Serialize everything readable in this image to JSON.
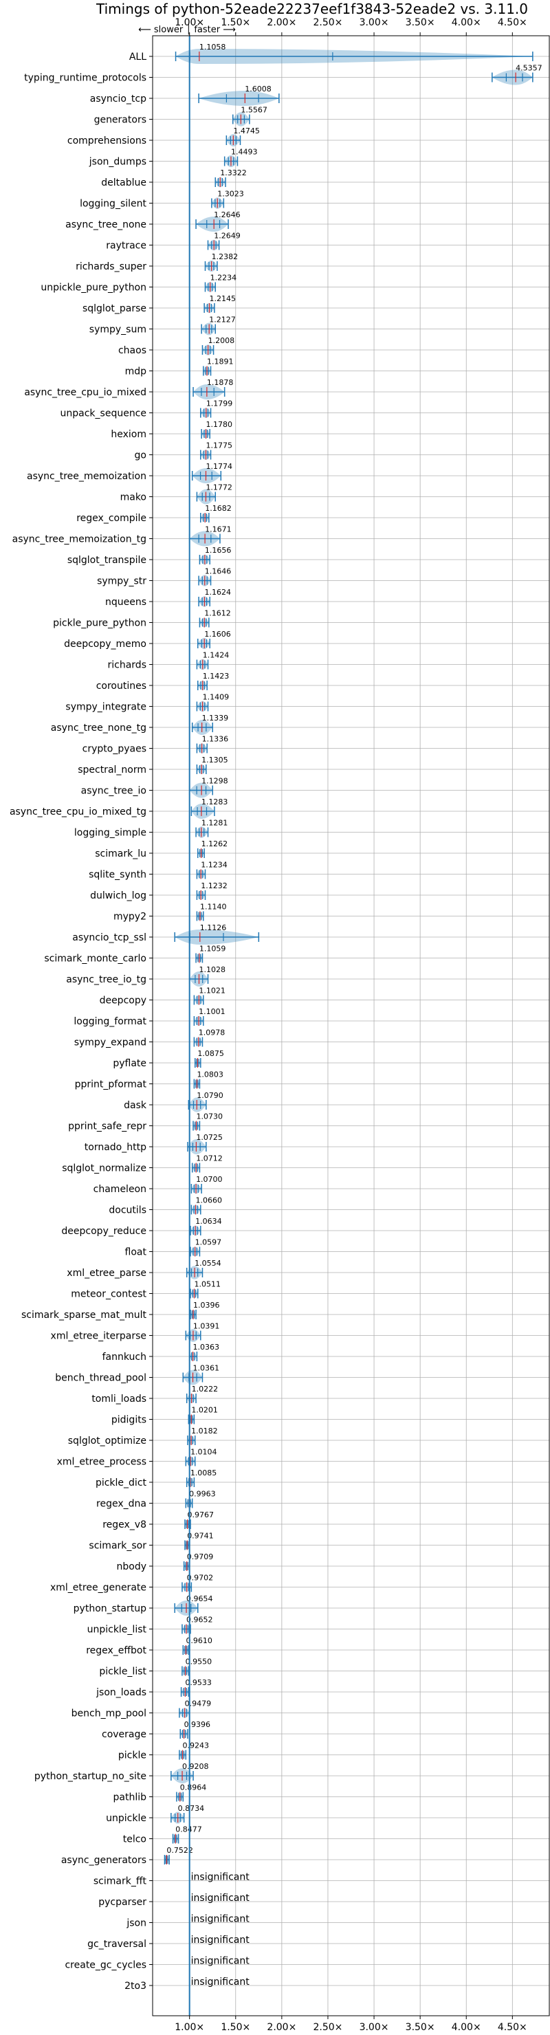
{
  "chart_data": {
    "type": "violin",
    "title": "Timings of python-52eade22237eef1f3843-52eade2 vs. 3.11.0",
    "annotation": "⟵ slower │ faster ⟶",
    "xlim": [
      0.6,
      4.9
    ],
    "x_ticks": [
      1.0,
      1.5,
      2.0,
      2.5,
      3.0,
      3.5,
      4.0,
      4.5
    ],
    "x_tick_labels": [
      "1.00×",
      "1.50×",
      "2.00×",
      "2.50×",
      "3.00×",
      "3.50×",
      "4.00×",
      "4.50×"
    ],
    "grid": true,
    "reference_line": 1.0,
    "colors": {
      "violin": "#1f77b4",
      "line": "#1f77b4",
      "median": "#d62728",
      "grid": "#b0b0b0"
    },
    "benchmarks": [
      {
        "name": "ALL",
        "value": 1.1058,
        "min": 0.85,
        "max": 4.72
      },
      {
        "name": "typing_runtime_protocols",
        "value": 4.5357,
        "min": 4.28,
        "max": 4.72
      },
      {
        "name": "asyncio_tcp",
        "value": 1.6008,
        "min": 1.1,
        "max": 1.97
      },
      {
        "name": "generators",
        "value": 1.5567,
        "min": 1.47,
        "max": 1.65
      },
      {
        "name": "comprehensions",
        "value": 1.4745,
        "min": 1.4,
        "max": 1.55
      },
      {
        "name": "json_dumps",
        "value": 1.4493,
        "min": 1.38,
        "max": 1.52
      },
      {
        "name": "deltablue",
        "value": 1.3322,
        "min": 1.28,
        "max": 1.39
      },
      {
        "name": "logging_silent",
        "value": 1.3023,
        "min": 1.24,
        "max": 1.37
      },
      {
        "name": "async_tree_none",
        "value": 1.2646,
        "min": 1.07,
        "max": 1.42
      },
      {
        "name": "raytrace",
        "value": 1.2649,
        "min": 1.2,
        "max": 1.32
      },
      {
        "name": "richards_super",
        "value": 1.2382,
        "min": 1.17,
        "max": 1.3
      },
      {
        "name": "unpickle_pure_python",
        "value": 1.2234,
        "min": 1.17,
        "max": 1.28
      },
      {
        "name": "sqlglot_parse",
        "value": 1.2145,
        "min": 1.16,
        "max": 1.27
      },
      {
        "name": "sympy_sum",
        "value": 1.2127,
        "min": 1.13,
        "max": 1.28
      },
      {
        "name": "chaos",
        "value": 1.2008,
        "min": 1.14,
        "max": 1.26
      },
      {
        "name": "mdp",
        "value": 1.1891,
        "min": 1.15,
        "max": 1.23
      },
      {
        "name": "async_tree_cpu_io_mixed",
        "value": 1.1878,
        "min": 1.04,
        "max": 1.38
      },
      {
        "name": "unpack_sequence",
        "value": 1.1799,
        "min": 1.12,
        "max": 1.23
      },
      {
        "name": "hexiom",
        "value": 1.178,
        "min": 1.13,
        "max": 1.22
      },
      {
        "name": "go",
        "value": 1.1775,
        "min": 1.12,
        "max": 1.23
      },
      {
        "name": "async_tree_memoization",
        "value": 1.1774,
        "min": 1.03,
        "max": 1.34
      },
      {
        "name": "mako",
        "value": 1.1772,
        "min": 1.08,
        "max": 1.28
      },
      {
        "name": "regex_compile",
        "value": 1.1682,
        "min": 1.12,
        "max": 1.21
      },
      {
        "name": "async_tree_memoization_tg",
        "value": 1.1671,
        "min": 1.0,
        "max": 1.33
      },
      {
        "name": "sqlglot_transpile",
        "value": 1.1656,
        "min": 1.11,
        "max": 1.22
      },
      {
        "name": "sympy_str",
        "value": 1.1646,
        "min": 1.1,
        "max": 1.23
      },
      {
        "name": "nqueens",
        "value": 1.1624,
        "min": 1.1,
        "max": 1.22
      },
      {
        "name": "pickle_pure_python",
        "value": 1.1612,
        "min": 1.11,
        "max": 1.21
      },
      {
        "name": "deepcopy_memo",
        "value": 1.1606,
        "min": 1.09,
        "max": 1.22
      },
      {
        "name": "richards",
        "value": 1.1424,
        "min": 1.08,
        "max": 1.2
      },
      {
        "name": "coroutines",
        "value": 1.1423,
        "min": 1.09,
        "max": 1.19
      },
      {
        "name": "sympy_integrate",
        "value": 1.1409,
        "min": 1.08,
        "max": 1.2
      },
      {
        "name": "async_tree_none_tg",
        "value": 1.1339,
        "min": 1.03,
        "max": 1.25
      },
      {
        "name": "crypto_pyaes",
        "value": 1.1336,
        "min": 1.08,
        "max": 1.19
      },
      {
        "name": "spectral_norm",
        "value": 1.1305,
        "min": 1.08,
        "max": 1.18
      },
      {
        "name": "async_tree_io",
        "value": 1.1298,
        "min": 1.0,
        "max": 1.25
      },
      {
        "name": "async_tree_cpu_io_mixed_tg",
        "value": 1.1283,
        "min": 1.02,
        "max": 1.27
      },
      {
        "name": "logging_simple",
        "value": 1.1281,
        "min": 1.07,
        "max": 1.2
      },
      {
        "name": "scimark_lu",
        "value": 1.1262,
        "min": 1.09,
        "max": 1.16
      },
      {
        "name": "sqlite_synth",
        "value": 1.1234,
        "min": 1.08,
        "max": 1.17
      },
      {
        "name": "dulwich_log",
        "value": 1.1232,
        "min": 1.08,
        "max": 1.17
      },
      {
        "name": "mypy2",
        "value": 1.114,
        "min": 1.08,
        "max": 1.15
      },
      {
        "name": "asyncio_tcp_ssl",
        "value": 1.1126,
        "min": 0.84,
        "max": 1.75
      },
      {
        "name": "scimark_monte_carlo",
        "value": 1.1059,
        "min": 1.07,
        "max": 1.14
      },
      {
        "name": "async_tree_io_tg",
        "value": 1.1028,
        "min": 1.0,
        "max": 1.2
      },
      {
        "name": "deepcopy",
        "value": 1.1021,
        "min": 1.05,
        "max": 1.15
      },
      {
        "name": "logging_format",
        "value": 1.1001,
        "min": 1.05,
        "max": 1.15
      },
      {
        "name": "sympy_expand",
        "value": 1.0978,
        "min": 1.05,
        "max": 1.14
      },
      {
        "name": "pyflate",
        "value": 1.0875,
        "min": 1.06,
        "max": 1.12
      },
      {
        "name": "pprint_pformat",
        "value": 1.0803,
        "min": 1.05,
        "max": 1.11
      },
      {
        "name": "dask",
        "value": 1.079,
        "min": 0.99,
        "max": 1.18
      },
      {
        "name": "pprint_safe_repr",
        "value": 1.073,
        "min": 1.04,
        "max": 1.11
      },
      {
        "name": "tornado_http",
        "value": 1.0725,
        "min": 0.98,
        "max": 1.18
      },
      {
        "name": "sqlglot_normalize",
        "value": 1.0712,
        "min": 1.03,
        "max": 1.11
      },
      {
        "name": "chameleon",
        "value": 1.07,
        "min": 1.02,
        "max": 1.13
      },
      {
        "name": "docutils",
        "value": 1.066,
        "min": 1.02,
        "max": 1.12
      },
      {
        "name": "deepcopy_reduce",
        "value": 1.0634,
        "min": 1.01,
        "max": 1.12
      },
      {
        "name": "float",
        "value": 1.0597,
        "min": 1.01,
        "max": 1.11
      },
      {
        "name": "xml_etree_parse",
        "value": 1.0554,
        "min": 0.97,
        "max": 1.14
      },
      {
        "name": "meteor_contest",
        "value": 1.0511,
        "min": 1.01,
        "max": 1.09
      },
      {
        "name": "scimark_sparse_mat_mult",
        "value": 1.0396,
        "min": 1.01,
        "max": 1.07
      },
      {
        "name": "xml_etree_iterparse",
        "value": 1.0391,
        "min": 0.96,
        "max": 1.12
      },
      {
        "name": "fannkuch",
        "value": 1.0363,
        "min": 1.0,
        "max": 1.08
      },
      {
        "name": "bench_thread_pool",
        "value": 1.0361,
        "min": 0.93,
        "max": 1.14
      },
      {
        "name": "tomli_loads",
        "value": 1.0222,
        "min": 0.97,
        "max": 1.07
      },
      {
        "name": "pidigits",
        "value": 1.0201,
        "min": 0.99,
        "max": 1.05
      },
      {
        "name": "sqlglot_optimize",
        "value": 1.0182,
        "min": 0.98,
        "max": 1.06
      },
      {
        "name": "xml_etree_process",
        "value": 1.0104,
        "min": 0.96,
        "max": 1.06
      },
      {
        "name": "pickle_dict",
        "value": 1.0085,
        "min": 0.97,
        "max": 1.05
      },
      {
        "name": "regex_dna",
        "value": 0.9963,
        "min": 0.96,
        "max": 1.03
      },
      {
        "name": "regex_v8",
        "value": 0.9767,
        "min": 0.95,
        "max": 1.01
      },
      {
        "name": "scimark_sor",
        "value": 0.9741,
        "min": 0.95,
        "max": 1.0
      },
      {
        "name": "nbody",
        "value": 0.9709,
        "min": 0.94,
        "max": 1.0
      },
      {
        "name": "xml_etree_generate",
        "value": 0.9702,
        "min": 0.92,
        "max": 1.02
      },
      {
        "name": "python_startup",
        "value": 0.9654,
        "min": 0.84,
        "max": 1.09
      },
      {
        "name": "unpickle_list",
        "value": 0.9652,
        "min": 0.92,
        "max": 1.01
      },
      {
        "name": "regex_effbot",
        "value": 0.961,
        "min": 0.93,
        "max": 0.99
      },
      {
        "name": "pickle_list",
        "value": 0.955,
        "min": 0.92,
        "max": 0.99
      },
      {
        "name": "json_loads",
        "value": 0.9533,
        "min": 0.91,
        "max": 0.99
      },
      {
        "name": "bench_mp_pool",
        "value": 0.9479,
        "min": 0.89,
        "max": 1.0
      },
      {
        "name": "coverage",
        "value": 0.9396,
        "min": 0.9,
        "max": 0.98
      },
      {
        "name": "pickle",
        "value": 0.9243,
        "min": 0.89,
        "max": 0.96
      },
      {
        "name": "python_startup_no_site",
        "value": 0.9208,
        "min": 0.8,
        "max": 1.04
      },
      {
        "name": "pathlib",
        "value": 0.8964,
        "min": 0.86,
        "max": 0.93
      },
      {
        "name": "unpickle",
        "value": 0.8734,
        "min": 0.8,
        "max": 0.94
      },
      {
        "name": "telco",
        "value": 0.8477,
        "min": 0.82,
        "max": 0.88
      },
      {
        "name": "async_generators",
        "value": 0.7522,
        "min": 0.73,
        "max": 0.78
      },
      {
        "name": "scimark_fft",
        "value": null,
        "label": "insignificant"
      },
      {
        "name": "pycparser",
        "value": null,
        "label": "insignificant"
      },
      {
        "name": "json",
        "value": null,
        "label": "insignificant"
      },
      {
        "name": "gc_traversal",
        "value": null,
        "label": "insignificant"
      },
      {
        "name": "create_gc_cycles",
        "value": null,
        "label": "insignificant"
      },
      {
        "name": "2to3",
        "value": null,
        "label": "insignificant"
      }
    ]
  }
}
